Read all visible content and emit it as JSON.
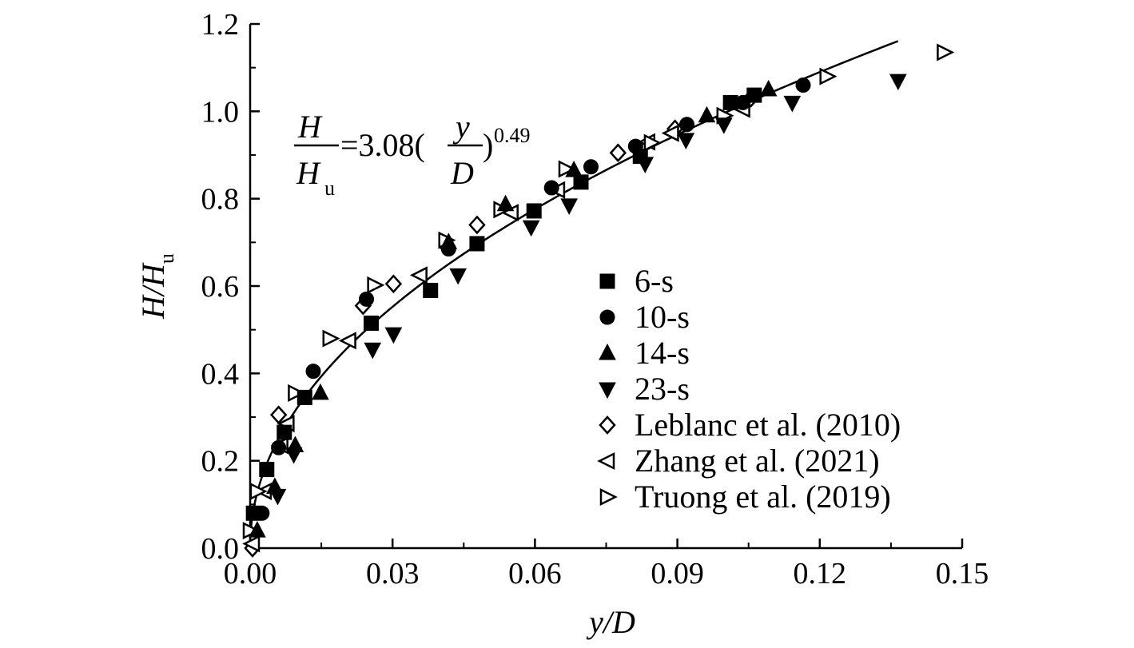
{
  "chart_data": {
    "type": "scatter",
    "xlabel": "y/D",
    "ylabel": "H/H",
    "ylabel_sub": "u",
    "xlim": [
      0,
      0.15
    ],
    "ylim": [
      0,
      1.2
    ],
    "xticks": [
      "0.00",
      "0.03",
      "0.06",
      "0.09",
      "0.12",
      "0.15"
    ],
    "xtick_values": [
      0,
      0.03,
      0.06,
      0.09,
      0.12,
      0.15
    ],
    "yticks": [
      "0.0",
      "0.2",
      "0.4",
      "0.6",
      "0.8",
      "1.0",
      "1.2"
    ],
    "ytick_values": [
      0,
      0.2,
      0.4,
      0.6,
      0.8,
      1.0,
      1.2
    ],
    "grid": false,
    "legend_position": "right",
    "equation": {
      "lhs_num": "H",
      "lhs_den": "H",
      "lhs_den_sub": "u",
      "coef": "=3.08(",
      "rhs_num": "y",
      "rhs_den": "D",
      "close": ")",
      "exponent": "0.49"
    },
    "fit": {
      "coefficient": 3.08,
      "exponent": 0.49,
      "x_range": [
        0,
        0.1365
      ]
    },
    "series": [
      {
        "name": "6-s",
        "marker": "square",
        "fill": "#000000",
        "points": [
          [
            0.0007,
            0.08
          ],
          [
            0.0035,
            0.18
          ],
          [
            0.0072,
            0.265
          ],
          [
            0.0115,
            0.345
          ],
          [
            0.0255,
            0.515
          ],
          [
            0.038,
            0.59
          ],
          [
            0.0478,
            0.697
          ],
          [
            0.0598,
            0.772
          ],
          [
            0.0697,
            0.838
          ],
          [
            0.0822,
            0.897
          ],
          [
            0.1012,
            1.02
          ],
          [
            0.1062,
            1.037
          ]
        ]
      },
      {
        "name": "10-s",
        "marker": "circle",
        "fill": "#000000",
        "points": [
          [
            0.0025,
            0.08
          ],
          [
            0.006,
            0.23
          ],
          [
            0.0133,
            0.405
          ],
          [
            0.0245,
            0.57
          ],
          [
            0.0418,
            0.685
          ],
          [
            0.0635,
            0.825
          ],
          [
            0.0718,
            0.873
          ],
          [
            0.0812,
            0.92
          ],
          [
            0.092,
            0.97
          ],
          [
            0.1038,
            1.02
          ],
          [
            0.1165,
            1.06
          ]
        ]
      },
      {
        "name": "14-s",
        "marker": "triangle-up",
        "fill": "#000000",
        "points": [
          [
            0.0015,
            0.04
          ],
          [
            0.0052,
            0.14
          ],
          [
            0.0095,
            0.235
          ],
          [
            0.0148,
            0.355
          ],
          [
            0.0418,
            0.7
          ],
          [
            0.0538,
            0.787
          ],
          [
            0.0682,
            0.865
          ],
          [
            0.0962,
            0.99
          ],
          [
            0.1092,
            1.05
          ]
        ]
      },
      {
        "name": "23-s",
        "marker": "triangle-down",
        "fill": "#000000",
        "points": [
          [
            0.0058,
            0.12
          ],
          [
            0.0092,
            0.215
          ],
          [
            0.0258,
            0.455
          ],
          [
            0.0302,
            0.49
          ],
          [
            0.0438,
            0.625
          ],
          [
            0.0592,
            0.735
          ],
          [
            0.0672,
            0.785
          ],
          [
            0.0832,
            0.88
          ],
          [
            0.0918,
            0.935
          ],
          [
            0.0998,
            0.97
          ],
          [
            0.1142,
            1.02
          ],
          [
            0.1365,
            1.07
          ]
        ]
      },
      {
        "name": "Leblanc et al. (2010)",
        "marker": "diamond",
        "fill": "none",
        "points": [
          [
            0.0005,
            0.0
          ],
          [
            0.006,
            0.305
          ],
          [
            0.0238,
            0.555
          ],
          [
            0.0302,
            0.605
          ],
          [
            0.0478,
            0.74
          ],
          [
            0.0775,
            0.905
          ],
          [
            0.0895,
            0.96
          ],
          [
            0.1055,
            1.03
          ]
        ]
      },
      {
        "name": "Zhang et al. (2021)",
        "marker": "triangle-left",
        "fill": "none",
        "points": [
          [
            0.0005,
            0.01
          ],
          [
            0.003,
            0.13
          ],
          [
            0.0065,
            0.235
          ],
          [
            0.0078,
            0.285
          ],
          [
            0.0208,
            0.475
          ],
          [
            0.0358,
            0.625
          ],
          [
            0.055,
            0.768
          ],
          [
            0.0648,
            0.82
          ],
          [
            0.0838,
            0.93
          ],
          [
            0.0888,
            0.95
          ],
          [
            0.1038,
            1.005
          ]
        ]
      },
      {
        "name": "Truong et al. (2019)",
        "marker": "triangle-right",
        "fill": "none",
        "points": [
          [
            0.0,
            0.04
          ],
          [
            0.0015,
            0.13
          ],
          [
            0.0095,
            0.355
          ],
          [
            0.0168,
            0.48
          ],
          [
            0.0262,
            0.602
          ],
          [
            0.0412,
            0.705
          ],
          [
            0.0528,
            0.775
          ],
          [
            0.0665,
            0.868
          ],
          [
            0.0845,
            0.928
          ],
          [
            0.0998,
            0.99
          ],
          [
            0.1215,
            1.08
          ],
          [
            0.1462,
            1.135
          ]
        ]
      }
    ]
  }
}
